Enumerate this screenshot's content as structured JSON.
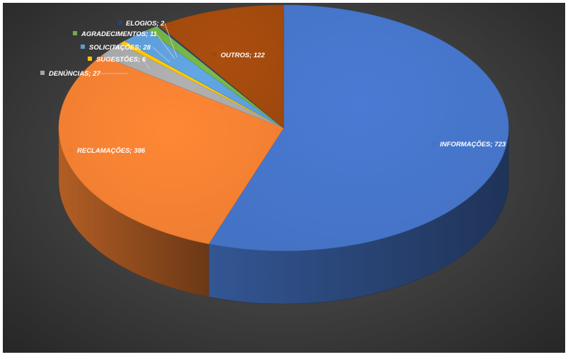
{
  "chart_data": {
    "type": "pie",
    "title": "",
    "slices": [
      {
        "label": "INFORMAÇÕES",
        "value": 723,
        "display": "INFORMAÇÕES; 723",
        "color": "#4472C4"
      },
      {
        "label": "RECLAMAÇÕES",
        "value": 386,
        "display": "RECLAMAÇÕES; 386",
        "color": "#ED7D31"
      },
      {
        "label": "DENÚNCIAS",
        "value": 27,
        "display": "DENÚNCIAS; 27",
        "color": "#A5A5A5"
      },
      {
        "label": "SUGESTÕES",
        "value": 6,
        "display": "SUGESTÕES; 6",
        "color": "#FFC000"
      },
      {
        "label": "SOLICITAÇÕES",
        "value": 28,
        "display": "SOLICITAÇÕES; 28",
        "color": "#5B9BD5"
      },
      {
        "label": "AGRADECIMENTOS",
        "value": 11,
        "display": "AGRADECIMENTOS; 11",
        "color": "#70AD47"
      },
      {
        "label": "ELOGIOS",
        "value": 2,
        "display": "ELOGIOS; 2",
        "color": "#264478"
      },
      {
        "label": "OUTROS",
        "value": 122,
        "display": "OUTROS; 122",
        "color": "#9E480E"
      }
    ],
    "legend": "none",
    "style": "3d-pie"
  }
}
